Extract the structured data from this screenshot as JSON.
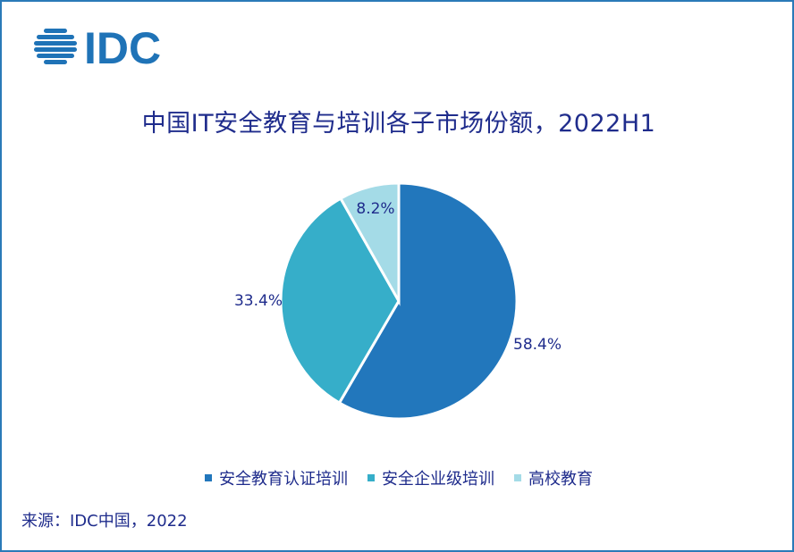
{
  "logo": {
    "text": "IDC",
    "color": "#1f73b7"
  },
  "chart_data": {
    "type": "pie",
    "title": "中国IT安全教育与培训各子市场份额，2022H1",
    "slices": [
      {
        "label": "安全教育认证培训",
        "value": 58.4,
        "value_label": "58.4%",
        "color": "#2277bc"
      },
      {
        "label": "安全企业级培训",
        "value": 33.4,
        "value_label": "33.4%",
        "color": "#36aec9"
      },
      {
        "label": "高校教育",
        "value": 8.2,
        "value_label": "8.2%",
        "color": "#a4dbe7"
      }
    ],
    "start_angle": "12 o'clock",
    "direction": "clockwise",
    "legend_position": "bottom"
  },
  "source": "来源：IDC中国，2022",
  "colors": {
    "text": "#1f2c8c",
    "border": "#2a7ab8"
  }
}
